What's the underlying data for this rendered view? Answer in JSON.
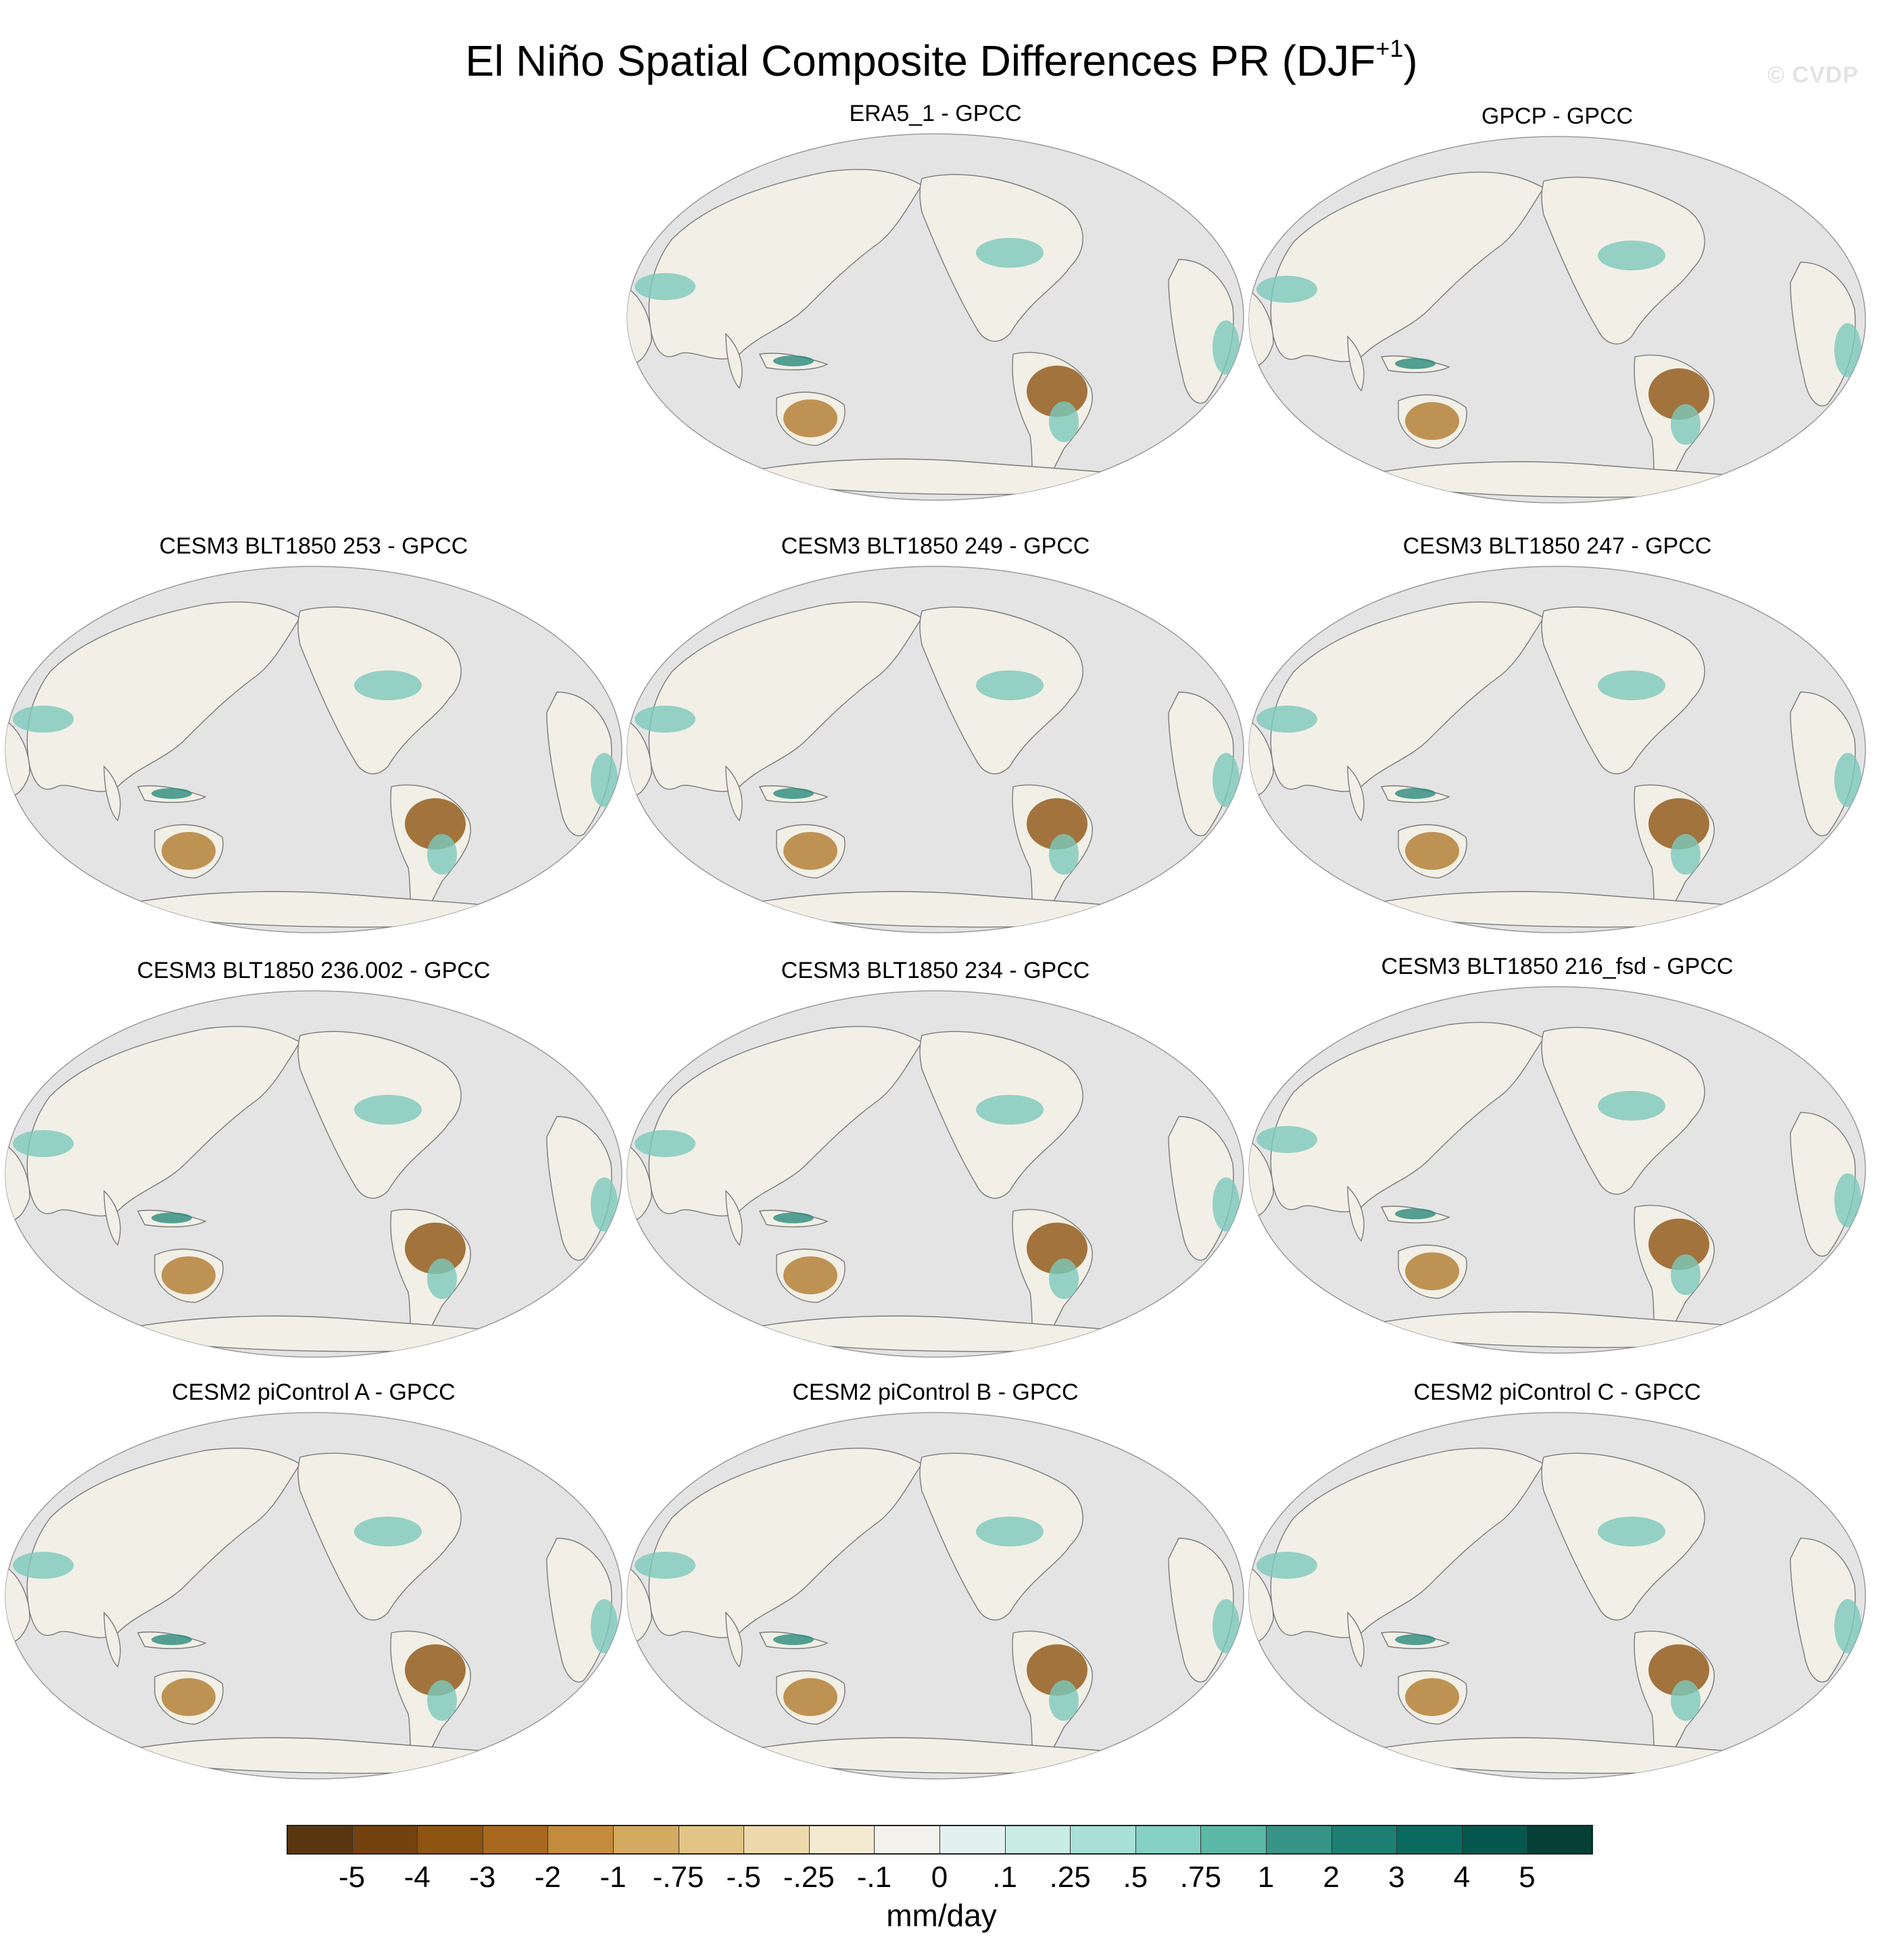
{
  "title": {
    "main": "El Niño Spatial Composite Differences PR (DJF",
    "superscript": "+1",
    "close": ")"
  },
  "watermark": "© CVDP",
  "panels": [
    {
      "title": "ERA5_1 - GPCC"
    },
    {
      "title": "GPCP - GPCC"
    },
    {
      "title": "CESM3 BLT1850 253 - GPCC"
    },
    {
      "title": "CESM3 BLT1850 249 - GPCC"
    },
    {
      "title": "CESM3 BLT1850 247 - GPCC"
    },
    {
      "title": "CESM3 BLT1850 236.002 - GPCC"
    },
    {
      "title": "CESM3 BLT1850 234 - GPCC"
    },
    {
      "title": "CESM3 BLT1850 216_fsd - GPCC"
    },
    {
      "title": "CESM2 piControl A - GPCC"
    },
    {
      "title": "CESM2 piControl B - GPCC"
    },
    {
      "title": "CESM2 piControl C - GPCC"
    }
  ],
  "colorbar": {
    "units": "mm/day",
    "labels": [
      "-5",
      "-4",
      "-3",
      "-2",
      "-1",
      "-.75",
      "-.5",
      "-.25",
      "-.1",
      "0",
      ".1",
      ".25",
      ".5",
      ".75",
      "1",
      "2",
      "3",
      "4",
      "5"
    ],
    "colors": [
      "#5a3610",
      "#74420e",
      "#8d5412",
      "#a8681f",
      "#c48b3c",
      "#d4aa60",
      "#e2c486",
      "#eed9ad",
      "#f4ead2",
      "#f3f1eb",
      "#e2f1ee",
      "#c8ebe4",
      "#a8e0d7",
      "#85d2c4",
      "#5bb7a6",
      "#379486",
      "#1d7f73",
      "#0b6a5f",
      "#06584e",
      "#053f36"
    ]
  },
  "map_colors": {
    "ocean": "#e4e4e4",
    "coast": "#7a7a7a",
    "land_neutral": "#f2efe6",
    "dry": "#b07a2e",
    "dry_strong": "#8d5412",
    "wet": "#7cc9bb",
    "wet_strong": "#2a8b7d"
  }
}
